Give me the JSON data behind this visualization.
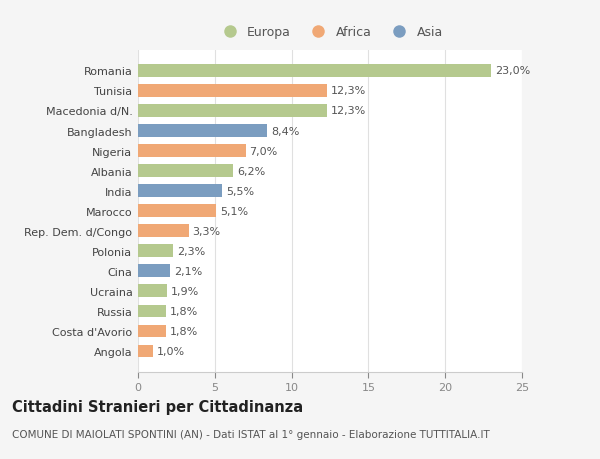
{
  "categories": [
    "Romania",
    "Tunisia",
    "Macedonia d/N.",
    "Bangladesh",
    "Nigeria",
    "Albania",
    "India",
    "Marocco",
    "Rep. Dem. d/Congo",
    "Polonia",
    "Cina",
    "Ucraina",
    "Russia",
    "Costa d'Avorio",
    "Angola"
  ],
  "values": [
    23.0,
    12.3,
    12.3,
    8.4,
    7.0,
    6.2,
    5.5,
    5.1,
    3.3,
    2.3,
    2.1,
    1.9,
    1.8,
    1.8,
    1.0
  ],
  "labels": [
    "23,0%",
    "12,3%",
    "12,3%",
    "8,4%",
    "7,0%",
    "6,2%",
    "5,5%",
    "5,1%",
    "3,3%",
    "2,3%",
    "2,1%",
    "1,9%",
    "1,8%",
    "1,8%",
    "1,0%"
  ],
  "continents": [
    "Europa",
    "Africa",
    "Europa",
    "Asia",
    "Africa",
    "Europa",
    "Asia",
    "Africa",
    "Africa",
    "Europa",
    "Asia",
    "Europa",
    "Europa",
    "Africa",
    "Africa"
  ],
  "colors": {
    "Europa": "#b5c98e",
    "Africa": "#f0a875",
    "Asia": "#7b9dc0"
  },
  "xlim": [
    0,
    25
  ],
  "xticks": [
    0,
    5,
    10,
    15,
    20,
    25
  ],
  "title": "Cittadini Stranieri per Cittadinanza",
  "subtitle": "COMUNE DI MAIOLATI SPONTINI (AN) - Dati ISTAT al 1° gennaio - Elaborazione TUTTITALIA.IT",
  "background_color": "#f5f5f5",
  "plot_bg_color": "#ffffff",
  "grid_color": "#e0e0e0",
  "label_fontsize": 8.0,
  "tick_fontsize": 8.0,
  "title_fontsize": 10.5,
  "subtitle_fontsize": 7.5,
  "bar_height": 0.62
}
